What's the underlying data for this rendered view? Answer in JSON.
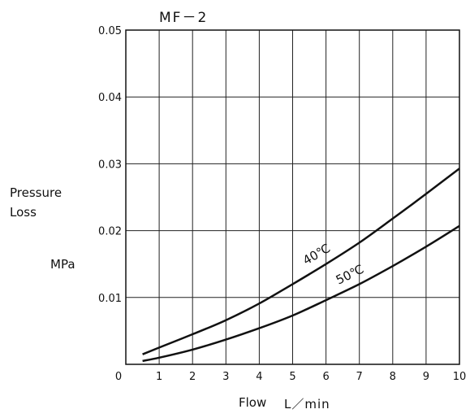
{
  "chart_data": {
    "type": "line",
    "title": "MF－2",
    "ylabel_lines": [
      "Pressure",
      "Loss"
    ],
    "yunit": "MPa",
    "xlabel": "Flow",
    "xunit": "L／min",
    "xlim": [
      0,
      10
    ],
    "ylim": [
      0,
      0.05
    ],
    "x_ticks": [
      0,
      1,
      2,
      3,
      4,
      5,
      6,
      7,
      8,
      9,
      10
    ],
    "x_tick_labels": [
      "0",
      "1",
      "2",
      "3",
      "4",
      "5",
      "6",
      "7",
      "8",
      "9",
      "10"
    ],
    "y_ticks": [
      0.01,
      0.02,
      0.03,
      0.04,
      0.05
    ],
    "y_tick_labels": [
      "0.01",
      "0.02",
      "0.03",
      "0.04",
      "0.05"
    ],
    "grid": true,
    "series": [
      {
        "name": "40℃",
        "x": [
          0.5,
          1,
          2,
          3,
          4,
          5,
          6,
          7,
          8,
          9,
          10
        ],
        "y": [
          0.0015,
          0.0025,
          0.0045,
          0.0066,
          0.0091,
          0.012,
          0.015,
          0.0182,
          0.0218,
          0.0255,
          0.0293
        ]
      },
      {
        "name": "50℃",
        "x": [
          0.5,
          1,
          2,
          3,
          4,
          5,
          6,
          7,
          8,
          9,
          10
        ],
        "y": [
          0.0005,
          0.001,
          0.0022,
          0.0037,
          0.0054,
          0.0073,
          0.0096,
          0.012,
          0.0147,
          0.0176,
          0.0207
        ]
      }
    ]
  }
}
